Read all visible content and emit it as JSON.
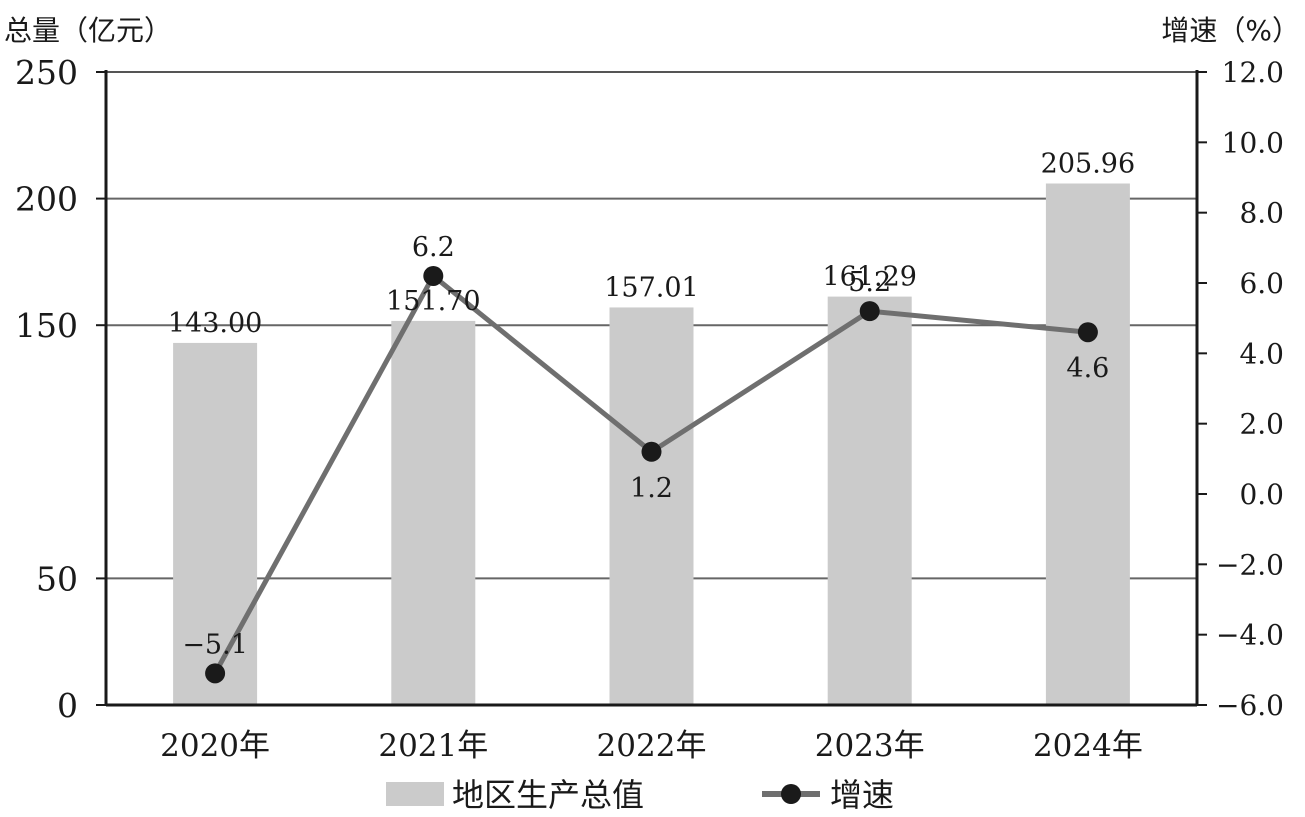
{
  "chart_data": {
    "type": "bar",
    "categories": [
      "2020年",
      "2021年",
      "2022年",
      "2023年",
      "2024年"
    ],
    "left_axis": {
      "title": "总量（亿元）",
      "ylim": [
        0,
        250
      ],
      "ticks": [
        "0",
        "50",
        "150",
        "200",
        "250"
      ],
      "tick_values": [
        0,
        50,
        150,
        200,
        250
      ]
    },
    "right_axis": {
      "title": "增速（%）",
      "ylim": [
        -6.0,
        12.0
      ],
      "ticks": [
        "−6.0",
        "−4.0",
        "−2.0",
        "0.0",
        "2.0",
        "4.0",
        "6.0",
        "8.0",
        "10.0",
        "12.0"
      ],
      "tick_values": [
        -6,
        -4,
        -2,
        0,
        2,
        4,
        6,
        8,
        10,
        12
      ]
    },
    "series": [
      {
        "name": "地区生产总值",
        "type": "bar",
        "axis": "left",
        "values": [
          143.0,
          151.7,
          157.01,
          161.29,
          205.96
        ],
        "labels": [
          "143.00",
          "151.70",
          "157.01",
          "161.29",
          "205.96"
        ],
        "color": "#cbcbcb"
      },
      {
        "name": "增速",
        "type": "line",
        "axis": "right",
        "values": [
          -5.1,
          6.2,
          1.2,
          5.2,
          4.6
        ],
        "labels": [
          "−5.1",
          "6.2",
          "1.2",
          "5.2",
          "4.6"
        ],
        "color": "#6f6f6f",
        "marker_color": "#1a1a1a"
      }
    ],
    "grid": true,
    "legend_position": "bottom-center"
  }
}
